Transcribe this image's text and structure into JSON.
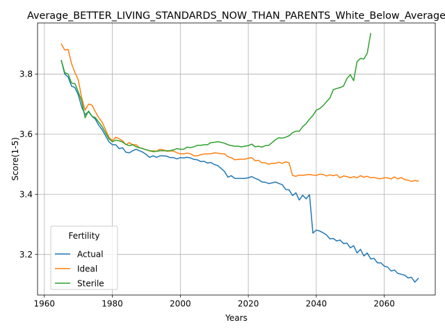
{
  "chart_data": {
    "type": "line",
    "title": "Average_BETTER_LIVING_STANDARDS_NOW_THAN_PARENTS_White_Below_Average",
    "xlabel": "Years",
    "ylabel": "Score(1-5)",
    "xlim": [
      1958,
      2075
    ],
    "ylim": [
      3.065,
      3.97
    ],
    "xticks": [
      1960,
      1980,
      2000,
      2020,
      2040,
      2060
    ],
    "yticks": [
      3.2,
      3.4,
      3.6,
      3.8
    ],
    "ytick_labels": [
      "3.2",
      "3.4",
      "3.6",
      "3.8"
    ],
    "grid": true,
    "legend": {
      "title": "Fertility",
      "placement": "lower-left"
    },
    "series": [
      {
        "name": "Actual",
        "color": "#1f77b4",
        "x": [
          1965,
          1966,
          1967,
          1968,
          1969,
          1970,
          1971,
          1972,
          1973,
          1974,
          1975,
          1976,
          1977,
          1978,
          1979,
          1980,
          1981,
          1982,
          1983,
          1984,
          1985,
          1986,
          1987,
          1988,
          1989,
          1990,
          1991,
          1992,
          1993,
          1994,
          1995,
          1996,
          1997,
          1998,
          1999,
          2000,
          2001,
          2002,
          2003,
          2004,
          2005,
          2006,
          2007,
          2008,
          2009,
          2010,
          2011,
          2012,
          2013,
          2014,
          2015,
          2016,
          2017,
          2018,
          2019,
          2020,
          2021,
          2022,
          2023,
          2024,
          2025,
          2026,
          2027,
          2028,
          2029,
          2030,
          2031,
          2032,
          2033,
          2034,
          2035,
          2036,
          2037,
          2038,
          2039,
          2040,
          2041,
          2042,
          2043,
          2044,
          2045,
          2046,
          2047,
          2048,
          2049,
          2050,
          2051,
          2052,
          2053,
          2054,
          2055,
          2056,
          2057,
          2058,
          2059,
          2060,
          2061,
          2062,
          2063,
          2064,
          2065,
          2066,
          2067,
          2068,
          2069,
          2070
        ],
        "values": [
          3.845,
          3.8,
          3.79,
          3.76,
          3.755,
          3.73,
          3.69,
          3.665,
          3.675,
          3.66,
          3.65,
          3.63,
          3.615,
          3.595,
          3.575,
          3.565,
          3.565,
          3.552,
          3.555,
          3.54,
          3.538,
          3.545,
          3.55,
          3.545,
          3.54,
          3.532,
          3.523,
          3.528,
          3.523,
          3.528,
          3.528,
          3.527,
          3.522,
          3.522,
          3.518,
          3.522,
          3.521,
          3.523,
          3.521,
          3.516,
          3.515,
          3.509,
          3.51,
          3.504,
          3.506,
          3.499,
          3.496,
          3.486,
          3.476,
          3.457,
          3.462,
          3.453,
          3.453,
          3.453,
          3.453,
          3.455,
          3.459,
          3.453,
          3.449,
          3.441,
          3.44,
          3.436,
          3.438,
          3.441,
          3.436,
          3.432,
          3.416,
          3.415,
          3.396,
          3.405,
          3.381,
          3.397,
          3.385,
          3.399,
          3.271,
          3.281,
          3.278,
          3.272,
          3.265,
          3.252,
          3.253,
          3.245,
          3.248,
          3.236,
          3.238,
          3.222,
          3.229,
          3.205,
          3.217,
          3.195,
          3.205,
          3.185,
          3.187,
          3.172,
          3.172,
          3.161,
          3.158,
          3.145,
          3.148,
          3.137,
          3.134,
          3.131,
          3.122,
          3.124,
          3.108,
          3.12
        ]
      },
      {
        "name": "Ideal",
        "color": "#ff7f0e",
        "x": [
          1965,
          1966,
          1967,
          1968,
          1969,
          1970,
          1971,
          1972,
          1973,
          1974,
          1975,
          1976,
          1977,
          1978,
          1979,
          1980,
          1981,
          1982,
          1983,
          1984,
          1985,
          1986,
          1987,
          1988,
          1989,
          1990,
          1991,
          1992,
          1993,
          1994,
          1995,
          1996,
          1997,
          1998,
          1999,
          2000,
          2001,
          2002,
          2003,
          2004,
          2005,
          2006,
          2007,
          2008,
          2009,
          2010,
          2011,
          2012,
          2013,
          2014,
          2015,
          2016,
          2017,
          2018,
          2019,
          2020,
          2021,
          2022,
          2023,
          2024,
          2025,
          2026,
          2027,
          2028,
          2029,
          2030,
          2031,
          2032,
          2033,
          2034,
          2035,
          2036,
          2037,
          2038,
          2039,
          2040,
          2041,
          2042,
          2043,
          2044,
          2045,
          2046,
          2047,
          2048,
          2049,
          2050,
          2051,
          2052,
          2053,
          2054,
          2055,
          2056,
          2057,
          2058,
          2059,
          2060,
          2061,
          2062,
          2063,
          2064,
          2065,
          2066,
          2067,
          2068,
          2069,
          2070
        ],
        "values": [
          3.9,
          3.88,
          3.882,
          3.835,
          3.805,
          3.78,
          3.72,
          3.68,
          3.7,
          3.697,
          3.675,
          3.655,
          3.64,
          3.615,
          3.59,
          3.578,
          3.59,
          3.585,
          3.578,
          3.565,
          3.572,
          3.565,
          3.565,
          3.555,
          3.552,
          3.548,
          3.544,
          3.545,
          3.543,
          3.55,
          3.548,
          3.543,
          3.544,
          3.544,
          3.538,
          3.535,
          3.535,
          3.537,
          3.535,
          3.528,
          3.528,
          3.532,
          3.534,
          3.535,
          3.535,
          3.538,
          3.537,
          3.535,
          3.535,
          3.525,
          3.522,
          3.515,
          3.516,
          3.517,
          3.517,
          3.52,
          3.522,
          3.512,
          3.513,
          3.505,
          3.505,
          3.5,
          3.503,
          3.503,
          3.507,
          3.503,
          3.508,
          3.505,
          3.463,
          3.46,
          3.464,
          3.463,
          3.465,
          3.466,
          3.464,
          3.463,
          3.467,
          3.466,
          3.461,
          3.465,
          3.462,
          3.465,
          3.455,
          3.461,
          3.459,
          3.455,
          3.459,
          3.455,
          3.462,
          3.457,
          3.46,
          3.455,
          3.456,
          3.453,
          3.452,
          3.455,
          3.455,
          3.451,
          3.458,
          3.451,
          3.456,
          3.449,
          3.447,
          3.443,
          3.446,
          3.444
        ]
      },
      {
        "name": "Sterile",
        "color": "#2ca02c",
        "x": [
          1965,
          1966,
          1967,
          1968,
          1969,
          1970,
          1971,
          1972,
          1973,
          1974,
          1975,
          1976,
          1977,
          1978,
          1979,
          1980,
          1981,
          1982,
          1983,
          1984,
          1985,
          1986,
          1987,
          1988,
          1989,
          1990,
          1991,
          1992,
          1993,
          1994,
          1995,
          1996,
          1997,
          1998,
          1999,
          2000,
          2001,
          2002,
          2003,
          2004,
          2005,
          2006,
          2007,
          2008,
          2009,
          2010,
          2011,
          2012,
          2013,
          2014,
          2015,
          2016,
          2017,
          2018,
          2019,
          2020,
          2021,
          2022,
          2023,
          2024,
          2025,
          2026,
          2027,
          2028,
          2029,
          2030,
          2031,
          2032,
          2033,
          2034,
          2035,
          2036,
          2037,
          2038,
          2039,
          2040,
          2041,
          2042,
          2043,
          2044,
          2045,
          2046,
          2047,
          2048,
          2049,
          2050,
          2051,
          2052,
          2053,
          2054,
          2055,
          2056
        ],
        "values": [
          3.845,
          3.805,
          3.8,
          3.77,
          3.768,
          3.74,
          3.71,
          3.655,
          3.677,
          3.66,
          3.655,
          3.64,
          3.625,
          3.605,
          3.585,
          3.575,
          3.58,
          3.578,
          3.574,
          3.566,
          3.562,
          3.565,
          3.558,
          3.555,
          3.552,
          3.548,
          3.545,
          3.542,
          3.543,
          3.545,
          3.545,
          3.545,
          3.545,
          3.548,
          3.552,
          3.55,
          3.55,
          3.557,
          3.555,
          3.558,
          3.563,
          3.563,
          3.565,
          3.565,
          3.572,
          3.573,
          3.575,
          3.573,
          3.57,
          3.565,
          3.562,
          3.56,
          3.56,
          3.558,
          3.56,
          3.562,
          3.567,
          3.558,
          3.56,
          3.557,
          3.562,
          3.563,
          3.572,
          3.582,
          3.588,
          3.587,
          3.59,
          3.595,
          3.605,
          3.61,
          3.61,
          3.625,
          3.635,
          3.65,
          3.662,
          3.68,
          3.685,
          3.695,
          3.708,
          3.72,
          3.748,
          3.752,
          3.755,
          3.76,
          3.785,
          3.798,
          3.778,
          3.842,
          3.852,
          3.85,
          3.87,
          3.935
        ]
      }
    ]
  }
}
